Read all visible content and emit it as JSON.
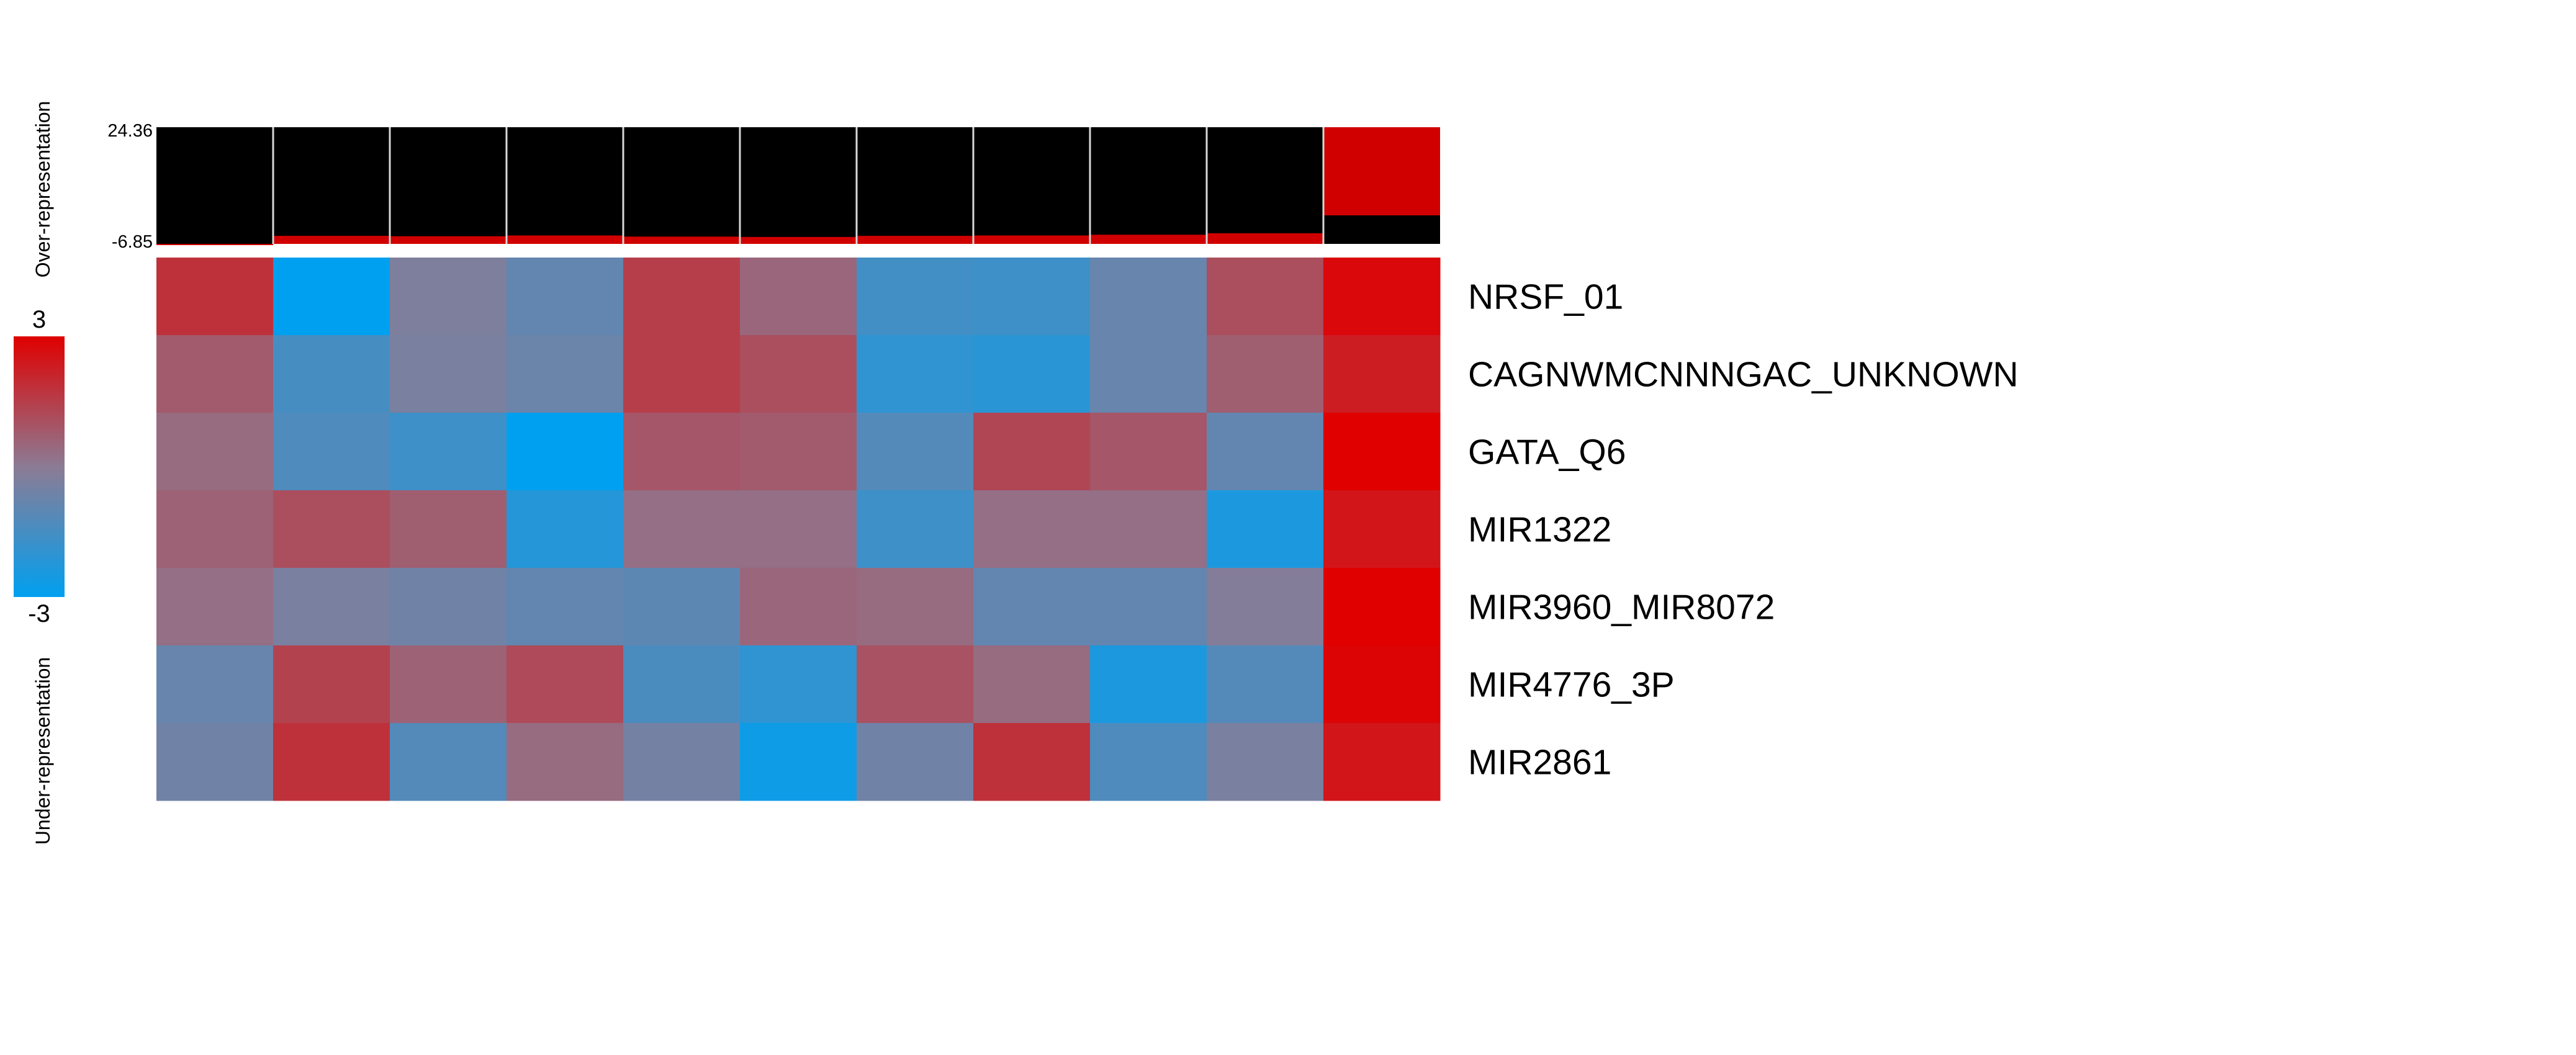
{
  "chart_data": {
    "type": "heatmap",
    "title": "",
    "xlabel": "",
    "ylabel": "",
    "rows": [
      "NRSF_01",
      "CAGNWMCNNNGAC_UNKNOWN",
      "GATA_Q6",
      "MIR1322",
      "MIR3960_MIR8072",
      "MIR4776_3P",
      "MIR2861"
    ],
    "n_columns": 11,
    "values": [
      [
        1.8,
        -3.0,
        -0.3,
        -0.9,
        1.5,
        0.5,
        -1.6,
        -1.7,
        -0.8,
        1.1,
        2.8
      ],
      [
        0.8,
        -1.5,
        -0.4,
        -0.7,
        1.5,
        1.1,
        -2.0,
        -2.1,
        -0.8,
        0.7,
        2.3
      ],
      [
        0.4,
        -1.3,
        -1.7,
        -3.0,
        0.9,
        0.8,
        -1.2,
        1.3,
        0.9,
        -0.9,
        3.0
      ],
      [
        0.6,
        1.1,
        0.7,
        -2.2,
        0.3,
        0.3,
        -1.7,
        0.3,
        0.3,
        -2.4,
        2.5
      ],
      [
        0.3,
        -0.4,
        -0.6,
        -0.9,
        -1.0,
        0.5,
        0.4,
        -0.9,
        -0.9,
        -0.2,
        3.0
      ],
      [
        -0.8,
        1.4,
        0.6,
        1.2,
        -1.4,
        -2.0,
        1.0,
        0.4,
        -2.4,
        -1.2,
        2.9
      ],
      [
        -0.6,
        1.8,
        -1.2,
        0.4,
        -0.5,
        -2.7,
        -0.6,
        1.8,
        -1.3,
        -0.4,
        2.5
      ]
    ],
    "color_scale": {
      "min": -3,
      "max": 3,
      "low_color": "#00a0f0",
      "mid_color": "#8c7b94",
      "high_color": "#e00000"
    },
    "legend": {
      "max_label": "3",
      "min_label": "-3"
    },
    "top_bar": {
      "ymax": 24.36,
      "ymin": -6.85,
      "max_label": "24.36",
      "min_label": "-6.85",
      "values": [
        -6.85,
        -4.7,
        -4.8,
        -4.6,
        -4.9,
        -5.0,
        -4.7,
        -4.6,
        -4.4,
        -4.0,
        24.36
      ],
      "bar_color": "#d00000",
      "background_color": "#000000"
    },
    "side_labels": {
      "over": "Over-representation",
      "under": "Under-representation"
    }
  }
}
